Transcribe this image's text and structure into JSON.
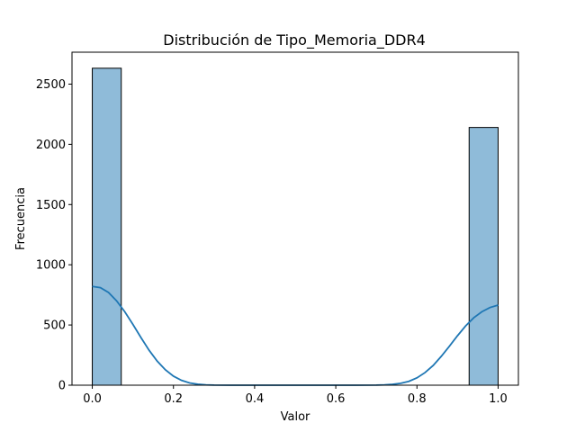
{
  "chart_data": {
    "type": "bar",
    "subtype": "histogram_with_kde",
    "title": "Distribución de Tipo_Memoria_DDR4",
    "xlabel": "Valor",
    "ylabel": "Frecuencia",
    "xlim": [
      -0.05,
      1.05
    ],
    "ylim": [
      0,
      2765
    ],
    "xticks": [
      0.0,
      0.2,
      0.4,
      0.6,
      0.8,
      1.0
    ],
    "xtick_labels": [
      "0.0",
      "0.2",
      "0.4",
      "0.6",
      "0.8",
      "1.0"
    ],
    "yticks": [
      0,
      500,
      1000,
      1500,
      2000,
      2500
    ],
    "ytick_labels": [
      "0",
      "500",
      "1000",
      "1500",
      "2000",
      "2500"
    ],
    "grid": false,
    "bins": [
      {
        "start": 0.0,
        "end": 0.0714,
        "count": 2632
      },
      {
        "start": 0.0714,
        "end": 0.1429,
        "count": 0
      },
      {
        "start": 0.1429,
        "end": 0.2143,
        "count": 0
      },
      {
        "start": 0.2143,
        "end": 0.2857,
        "count": 0
      },
      {
        "start": 0.2857,
        "end": 0.3571,
        "count": 0
      },
      {
        "start": 0.3571,
        "end": 0.4286,
        "count": 0
      },
      {
        "start": 0.4286,
        "end": 0.5,
        "count": 0
      },
      {
        "start": 0.5,
        "end": 0.5714,
        "count": 0
      },
      {
        "start": 0.5714,
        "end": 0.6429,
        "count": 0
      },
      {
        "start": 0.6429,
        "end": 0.7143,
        "count": 0
      },
      {
        "start": 0.7143,
        "end": 0.7857,
        "count": 0
      },
      {
        "start": 0.7857,
        "end": 0.8571,
        "count": 0
      },
      {
        "start": 0.8571,
        "end": 0.9286,
        "count": 0
      },
      {
        "start": 0.9286,
        "end": 1.0,
        "count": 2140
      }
    ],
    "kde": {
      "x": [
        0.0,
        0.02,
        0.04,
        0.06,
        0.08,
        0.1,
        0.12,
        0.14,
        0.16,
        0.18,
        0.2,
        0.22,
        0.24,
        0.26,
        0.28,
        0.3,
        0.35,
        0.4,
        0.5,
        0.6,
        0.65,
        0.7,
        0.72,
        0.74,
        0.76,
        0.78,
        0.8,
        0.82,
        0.84,
        0.86,
        0.88,
        0.9,
        0.92,
        0.94,
        0.96,
        0.98,
        1.0
      ],
      "y": [
        820,
        810,
        770,
        700,
        610,
        505,
        395,
        290,
        200,
        128,
        75,
        40,
        19,
        8,
        3,
        1,
        0,
        0,
        0,
        0,
        0,
        1,
        3,
        7,
        16,
        32,
        61,
        105,
        164,
        240,
        324,
        411,
        492,
        560,
        610,
        645,
        665
      ]
    },
    "colors": {
      "bar_fill": "#8fbbd9",
      "bar_edge": "#000000",
      "kde_line": "#1f77b4"
    }
  }
}
